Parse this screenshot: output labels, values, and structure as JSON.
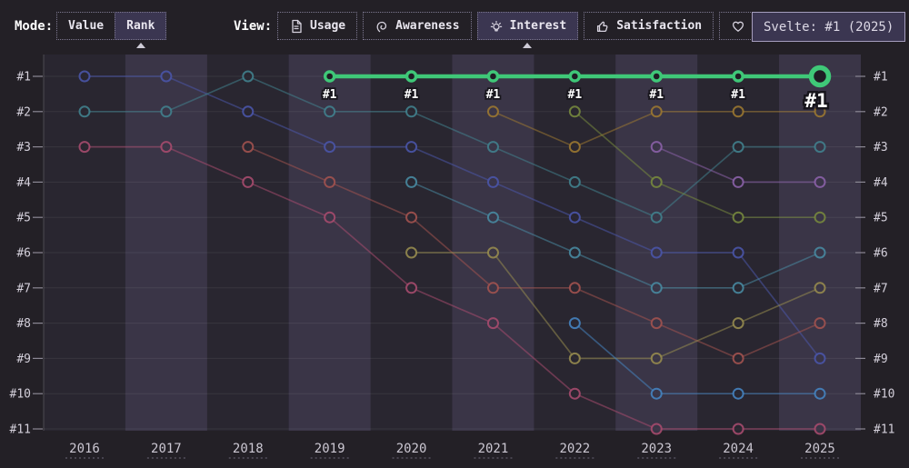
{
  "topbar": {
    "mode": {
      "label": "Mode:",
      "options": [
        {
          "label": "Value",
          "selected": false
        },
        {
          "label": "Rank",
          "selected": true
        }
      ]
    },
    "view": {
      "label": "View:",
      "options": [
        {
          "label": "Usage",
          "icon": "file-icon",
          "selected": false
        },
        {
          "label": "Awareness",
          "icon": "ear-icon",
          "selected": false
        },
        {
          "label": "Interest",
          "icon": "bulb-icon",
          "selected": true
        },
        {
          "label": "Satisfaction",
          "icon": "thumbs-up-icon",
          "selected": false
        },
        {
          "label": "Appreciation",
          "icon": "heart-icon",
          "selected": false
        }
      ]
    },
    "tooltip": {
      "text": "Svelte: #1 (2025)"
    }
  },
  "chart_data": {
    "type": "line",
    "subtype": "bump-rank-chart",
    "mode": "Rank",
    "metric": "Interest",
    "years": [
      "2016",
      "2017",
      "2018",
      "2019",
      "2020",
      "2021",
      "2022",
      "2023",
      "2024",
      "2025"
    ],
    "rank_labels": [
      "#1",
      "#2",
      "#3",
      "#4",
      "#5",
      "#6",
      "#7",
      "#8",
      "#9",
      "#10",
      "#11"
    ],
    "ylim": [
      1,
      11
    ],
    "grid": true,
    "legend": "none",
    "series": [
      {
        "id": "indigo",
        "color": "#4a55a8",
        "ranks": [
          1,
          1,
          2,
          3,
          3,
          4,
          5,
          6,
          6,
          9
        ]
      },
      {
        "id": "teal",
        "color": "#41808d",
        "ranks": [
          2,
          2,
          1,
          2,
          2,
          3,
          4,
          5,
          3,
          3
        ]
      },
      {
        "id": "rose",
        "color": "#a64b6d",
        "ranks": [
          3,
          3,
          4,
          5,
          7,
          8,
          10,
          11,
          11,
          11
        ]
      },
      {
        "id": "brick",
        "color": "#a1524f",
        "ranks": [
          null,
          null,
          3,
          4,
          5,
          7,
          7,
          8,
          9,
          8
        ]
      },
      {
        "id": "cyan",
        "color": "#4889a0",
        "ranks": [
          null,
          null,
          null,
          null,
          4,
          5,
          6,
          7,
          7,
          6
        ]
      },
      {
        "id": "tan",
        "color": "#958a4e",
        "ranks": [
          null,
          null,
          null,
          null,
          6,
          6,
          9,
          9,
          8,
          7
        ]
      },
      {
        "id": "gold",
        "color": "#9b7731",
        "ranks": [
          null,
          null,
          null,
          null,
          null,
          2,
          3,
          2,
          2,
          2
        ]
      },
      {
        "id": "olive",
        "color": "#76883e",
        "ranks": [
          null,
          null,
          null,
          null,
          null,
          null,
          2,
          4,
          5,
          5
        ]
      },
      {
        "id": "blue",
        "color": "#4583c0",
        "ranks": [
          null,
          null,
          null,
          null,
          null,
          null,
          8,
          10,
          10,
          10
        ]
      },
      {
        "id": "purple",
        "color": "#8a61a8",
        "ranks": [
          null,
          null,
          null,
          null,
          null,
          null,
          null,
          3,
          4,
          4
        ]
      },
      {
        "id": "svelte",
        "label": "Svelte",
        "color": "#3fc878",
        "highlighted": true,
        "ranks": [
          null,
          null,
          null,
          1,
          1,
          1,
          1,
          1,
          1,
          1
        ],
        "point_label": "#1",
        "tooltip": "Svelte: #1 (2025)"
      }
    ],
    "colors": {
      "background": "#232026",
      "plot_column": "#292630",
      "band_column": "#3a3547",
      "gridline": "rgba(255,255,255,0.07)",
      "axis_line": "rgba(255,255,255,0.18)",
      "tick": "#8b8894",
      "dot_fill_highlight": "#1f1d24",
      "year_underline": "#6b6678"
    }
  }
}
